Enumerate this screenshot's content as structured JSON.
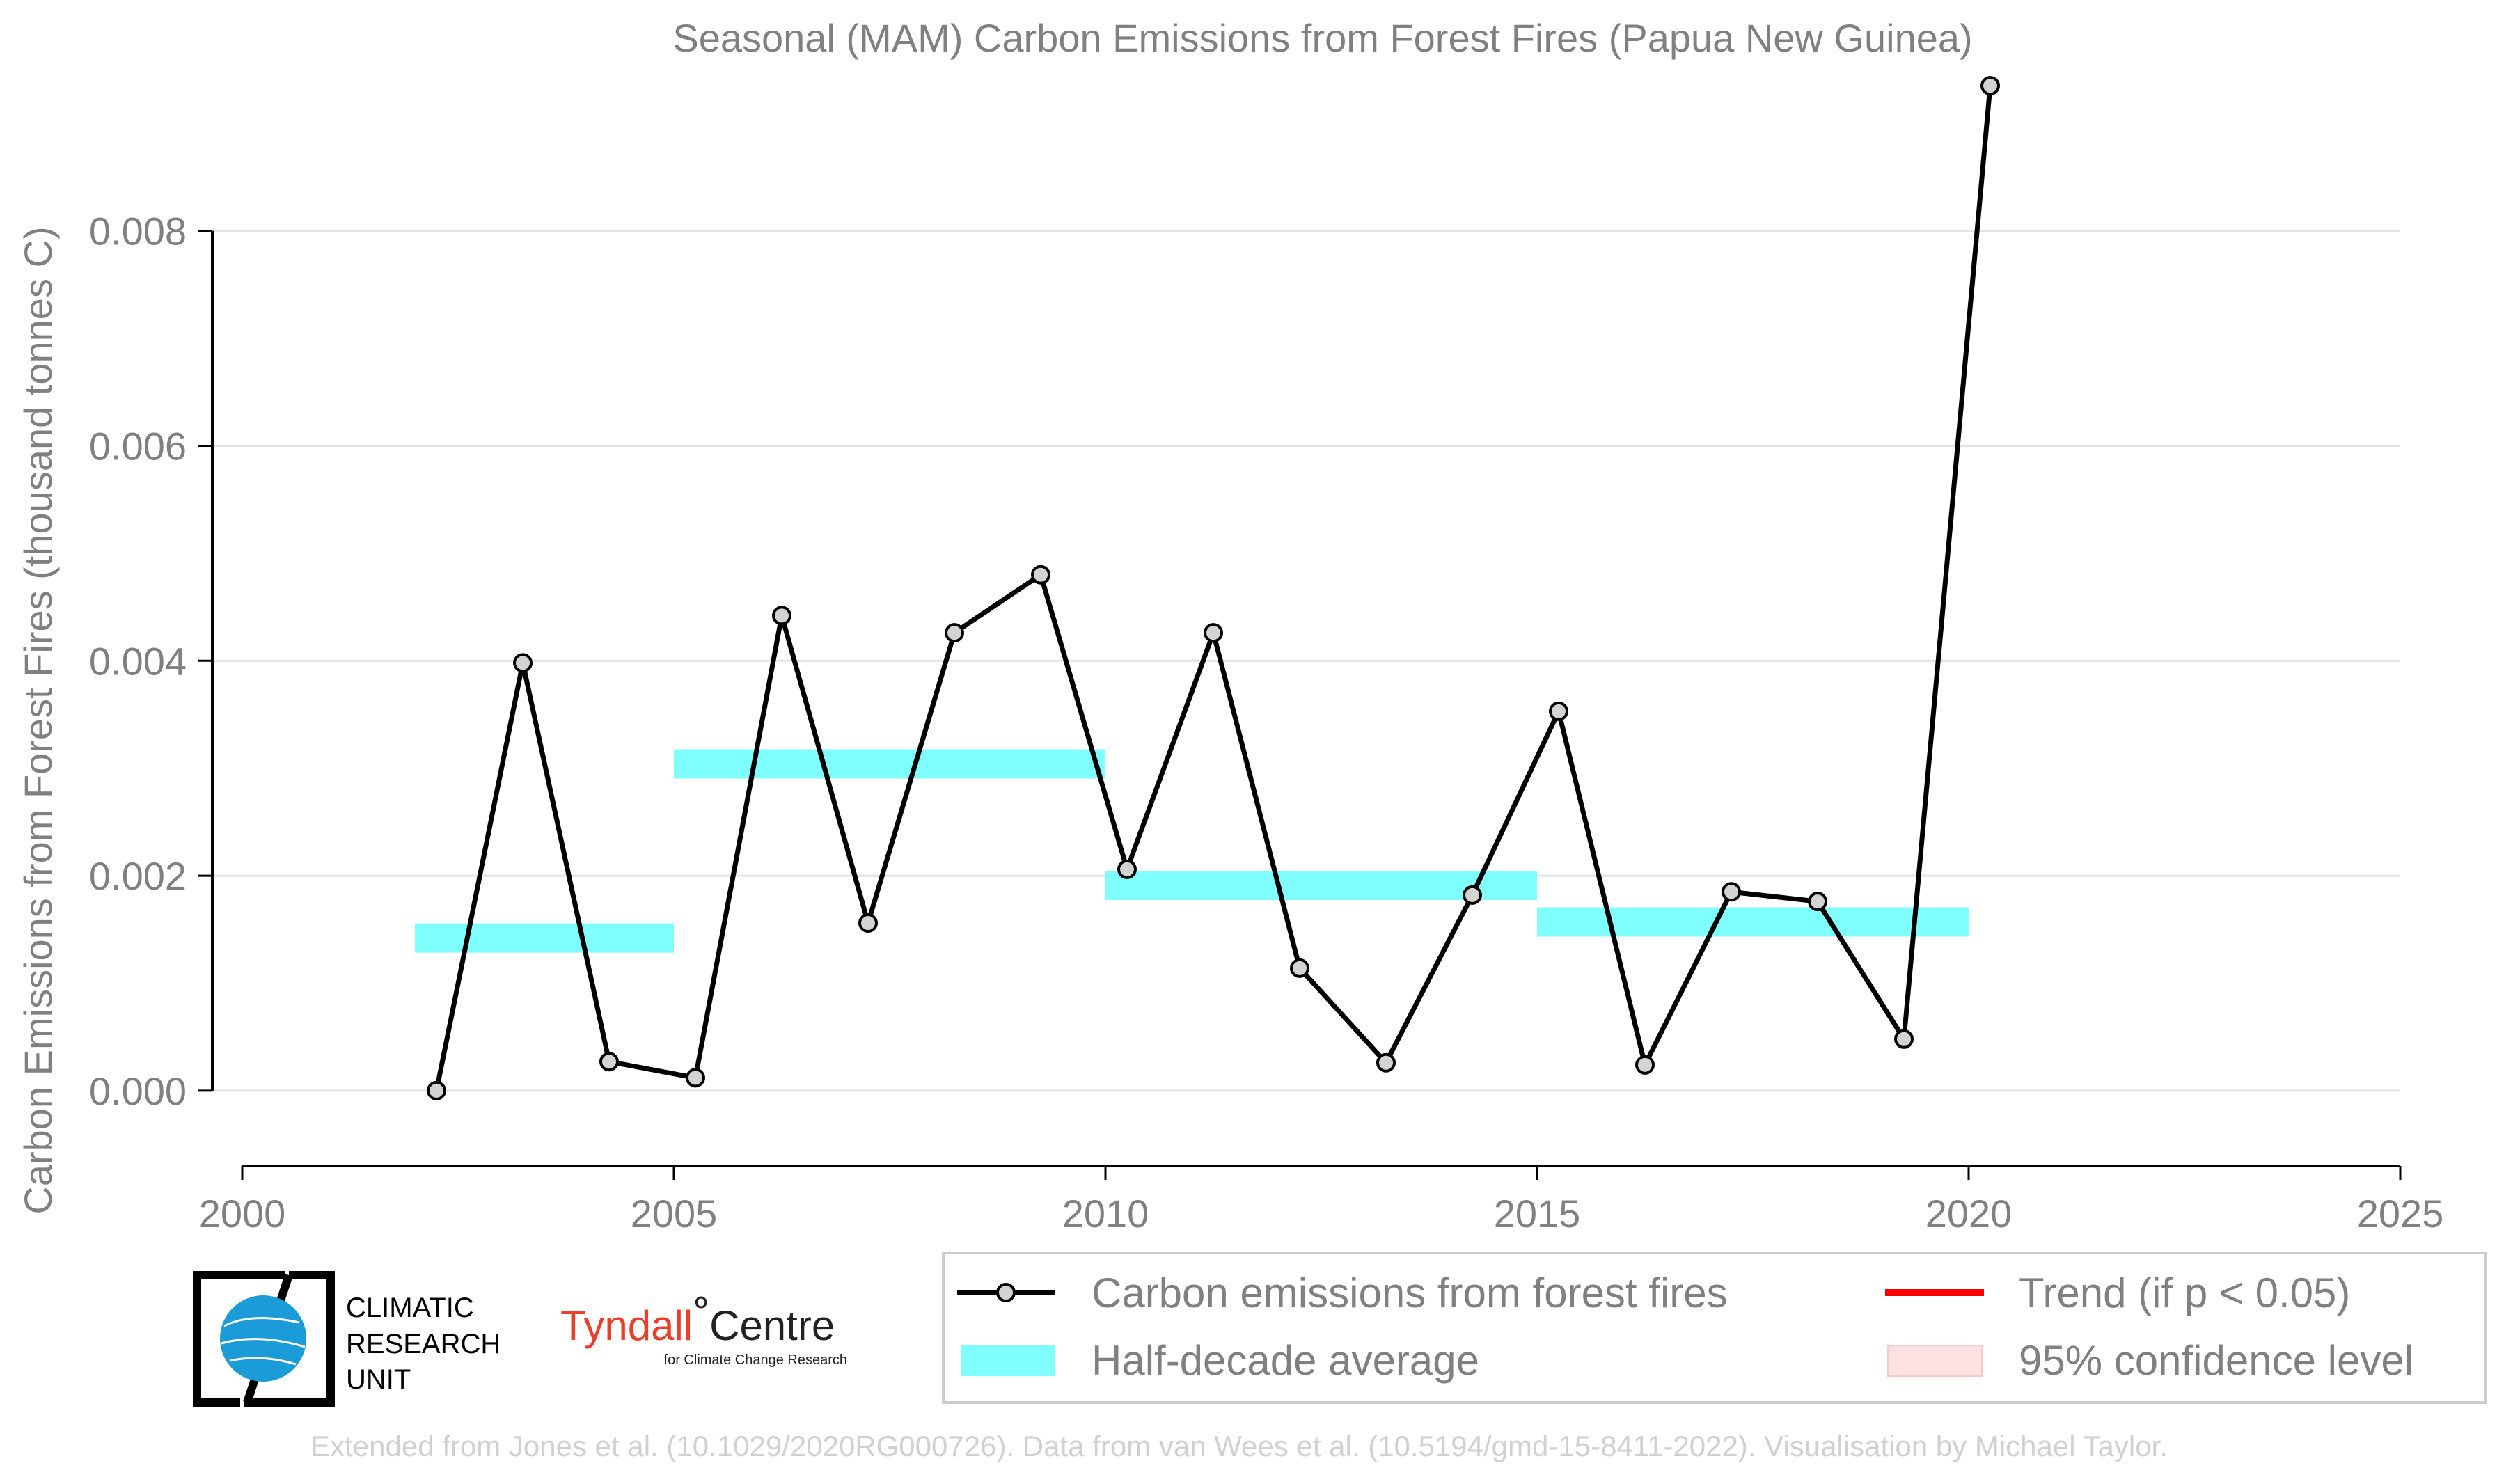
{
  "chart_data": {
    "type": "line",
    "title": "Seasonal (MAM) Carbon Emissions from Forest Fires (Papua New Guinea)",
    "xlabel": "",
    "ylabel": "Carbon Emissions from Forest Fires (thousand tonnes C)",
    "xlim": [
      2000,
      2025
    ],
    "ylim": [
      -0.0007,
      0.0095
    ],
    "xticks": [
      2000,
      2005,
      2010,
      2015,
      2020,
      2025
    ],
    "xtick_labels": [
      "2000",
      "2005",
      "2010",
      "2015",
      "2020",
      "2025"
    ],
    "yticks": [
      0.0,
      0.002,
      0.004,
      0.006,
      0.008
    ],
    "ytick_labels": [
      "0.000",
      "0.002",
      "0.004",
      "0.006",
      "0.008"
    ],
    "grid": "horizontal",
    "legend_position": "bottom",
    "series": [
      {
        "name": "Carbon emissions from forest fires",
        "color": "#000000",
        "marker_fill": "#d3d3d3",
        "x": [
          2002.25,
          2003.25,
          2004.25,
          2005.25,
          2006.25,
          2007.25,
          2008.25,
          2009.25,
          2010.25,
          2011.25,
          2012.25,
          2013.25,
          2014.25,
          2015.25,
          2016.25,
          2017.25,
          2018.25,
          2019.25,
          2020.25
        ],
        "y": [
          0.0,
          0.00398,
          0.00027,
          0.00012,
          0.00442,
          0.00156,
          0.00426,
          0.0048,
          0.00206,
          0.00426,
          0.00114,
          0.00026,
          0.00182,
          0.00353,
          0.00024,
          0.00185,
          0.00176,
          0.00048,
          0.00935
        ]
      },
      {
        "name": "Half-decade average",
        "color": "#80ffff",
        "segments": [
          {
            "x0": 2002,
            "x1": 2005,
            "y": 0.00142
          },
          {
            "x0": 2005,
            "x1": 2010,
            "y": 0.00304
          },
          {
            "x0": 2010,
            "x1": 2015,
            "y": 0.00191
          },
          {
            "x0": 2015,
            "x1": 2020,
            "y": 0.00157
          }
        ]
      }
    ],
    "legend": [
      {
        "label": "Carbon emissions from forest fires",
        "color": "#000000",
        "symbol": "line-marker"
      },
      {
        "label": "Trend (if p < 0.05)",
        "color": "#ff0000",
        "symbol": "line"
      },
      {
        "label": "Half-decade average",
        "color": "#80ffff",
        "symbol": "patch"
      },
      {
        "label": "95% confidence level",
        "color": "#fde0e0",
        "symbol": "patch"
      }
    ]
  },
  "logos": {
    "cru_lines": [
      "CLIMATIC",
      "RESEARCH",
      "UNIT"
    ],
    "tyndall_name": "Tyndall",
    "tyndall_degree": "°",
    "tyndall_centre": "Centre",
    "tyndall_sub": "for Climate Change Research"
  },
  "credit": "Extended from Jones et al. (10.1029/2020RG000726). Data from van Wees et al. (10.5194/gmd-15-8411-2022). Visualisation by Michael Taylor."
}
